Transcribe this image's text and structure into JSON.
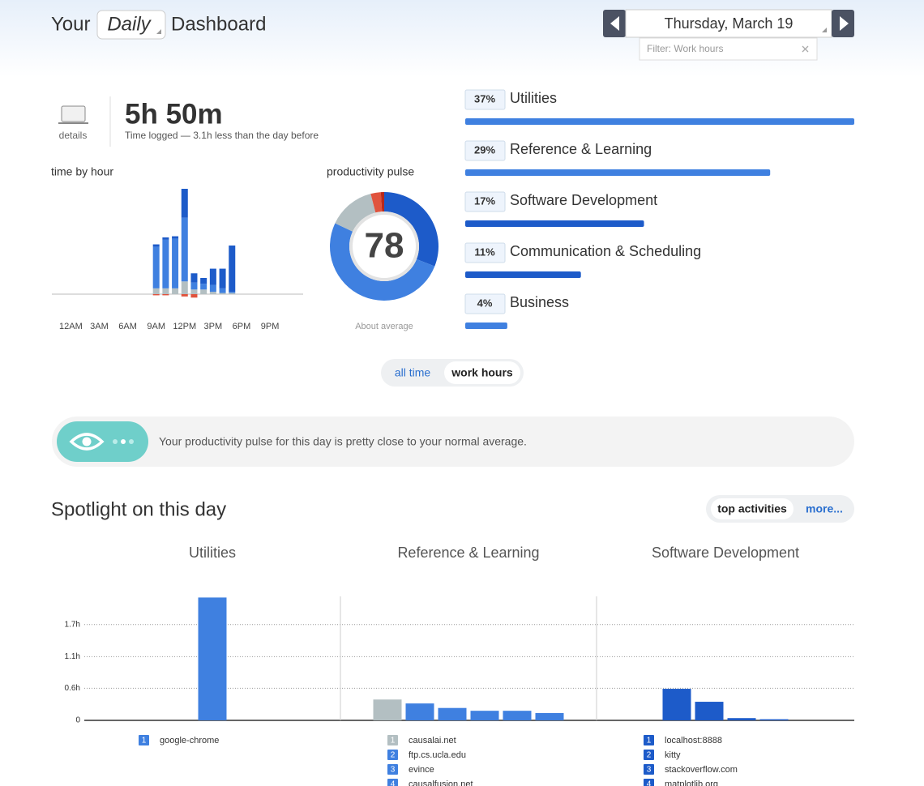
{
  "header": {
    "prefix": "Your",
    "period": "Daily",
    "suffix": "Dashboard",
    "date": "Thursday, March 19",
    "filter": "Filter: Work hours"
  },
  "summary": {
    "details": "details",
    "total": "5h 50m",
    "note": "Time logged — 3.1h less than the day before"
  },
  "time_by_hour": {
    "type": "bar",
    "stacked": true,
    "title": "time by hour",
    "x": [
      9,
      10,
      11,
      12,
      13,
      14,
      15,
      16,
      17
    ],
    "xlim": [
      -2,
      24.5
    ],
    "xticks": [
      {
        "value": 0,
        "label": "12AM"
      },
      {
        "value": 3,
        "label": "3AM"
      },
      {
        "value": 6,
        "label": "6AM"
      },
      {
        "value": 9,
        "label": "9AM"
      },
      {
        "value": 12,
        "label": "12PM"
      },
      {
        "value": 15,
        "label": "3PM"
      },
      {
        "value": 18,
        "label": "6PM"
      },
      {
        "value": 21,
        "label": "9PM"
      }
    ],
    "series": [
      {
        "color": "#b3bfc2",
        "values": [
          5,
          5,
          5,
          11,
          4,
          4,
          2,
          1,
          1
        ]
      },
      {
        "color": "#3f80e0",
        "values": [
          36,
          42,
          43,
          55,
          6,
          5,
          6,
          4,
          1
        ]
      },
      {
        "color": "#1d5bc9",
        "values": [
          2,
          2,
          2,
          25,
          8,
          5,
          14,
          17,
          40
        ]
      },
      {
        "color": "#e0533d",
        "values": [
          -1,
          -1,
          0,
          -2,
          -3,
          0,
          0,
          0,
          0
        ]
      }
    ]
  },
  "productivity_pulse": {
    "type": "donut",
    "title": "productivity pulse",
    "score": 78,
    "caption": "About average",
    "segments": [
      {
        "color": "#1d5bc9",
        "value": 31
      },
      {
        "color": "#3f80e0",
        "value": 51
      },
      {
        "color": "#b3bfc2",
        "value": 14
      },
      {
        "color": "#e0533d",
        "value": 3
      },
      {
        "color": "#b8291b",
        "value": 1
      }
    ]
  },
  "categories": {
    "type": "bar",
    "categories": [
      "Utilities",
      "Reference & Learning",
      "Software Development",
      "Communication & Scheduling",
      "Business"
    ],
    "values": [
      37,
      29,
      17,
      11,
      4
    ],
    "value_labels": [
      "37%",
      "29%",
      "17%",
      "11%",
      "4%"
    ],
    "colors": [
      "#3f80e0",
      "#3f80e0",
      "#1d5bc9",
      "#1d5bc9",
      "#3f80e0"
    ]
  },
  "toggle": {
    "options": [
      "all time",
      "work hours"
    ],
    "active": 1
  },
  "banner": {
    "text": "Your productivity pulse for this day is pretty close to your normal average."
  },
  "spotlight": {
    "title": "Spotlight on this day",
    "buttons": [
      "top activities",
      "more..."
    ],
    "active": 0,
    "chart": {
      "type": "bar",
      "ylim": [
        0,
        2.2
      ],
      "yticks": [
        0,
        {
          "value": 0.57,
          "label": "0.6h"
        },
        {
          "value": 1.13,
          "label": "1.1h"
        },
        {
          "value": 1.7,
          "label": "1.7h"
        }
      ],
      "grid": true,
      "panels": [
        {
          "title": "Utilities",
          "categories": [
            "google-chrome"
          ],
          "ranks": [
            1
          ],
          "values": [
            2.18
          ],
          "colors": [
            "#3f80e0"
          ]
        },
        {
          "title": "Reference & Learning",
          "categories": [
            "causalai.net",
            "ftp.cs.ucla.edu",
            "evince",
            "causalfusion.net",
            null,
            null
          ],
          "ranks": [
            1,
            2,
            3,
            4,
            null,
            null
          ],
          "values": [
            0.37,
            0.3,
            0.22,
            0.17,
            0.17,
            0.13
          ],
          "colors": [
            "#b3bfc2",
            "#3f80e0",
            "#3f80e0",
            "#3f80e0",
            "#3f80e0",
            "#3f80e0"
          ]
        },
        {
          "title": "Software Development",
          "categories": [
            "localhost:8888",
            "kitty",
            "stackoverflow.com",
            "matplotlib.org"
          ],
          "ranks": [
            1,
            2,
            3,
            4
          ],
          "values": [
            0.56,
            0.33,
            0.04,
            0.02
          ],
          "colors": [
            "#1d5bc9",
            "#1d5bc9",
            "#1d5bc9",
            "#1d5bc9"
          ]
        }
      ]
    }
  }
}
